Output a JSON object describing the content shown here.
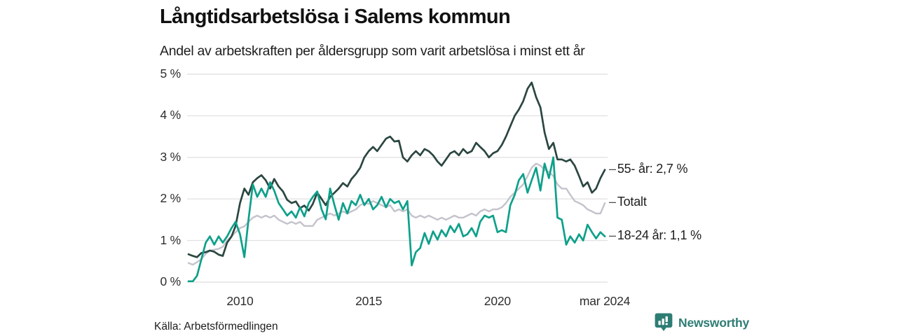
{
  "title": "Långtidsarbetslösa i Salems kommun",
  "subtitle": "Andel av arbetskraften per åldersgrupp som varit arbetslösa i minst ett år",
  "source": "Källa: Arbetsförmedlingen",
  "logo": {
    "text": "Newsworthy",
    "icon": "bar-chart-speech-bubble-icon",
    "color": "#2e7d74"
  },
  "colors": {
    "series_55": "#2b4641",
    "series_totalt": "#c4c3cc",
    "series_1824": "#0ea08a",
    "grid": "#e3e3e5",
    "axis_text": "#2e2e2e",
    "label_text": "#1d1d1d"
  },
  "endlabel_dash": "–",
  "chart_data": {
    "type": "line",
    "title": "Långtidsarbetslösa i Salems kommun",
    "subtitle": "Andel av arbetskraften per åldersgrupp som varit arbetslösa i minst ett år",
    "xlabel": "",
    "ylabel": "",
    "xlim": [
      2008,
      2024.25
    ],
    "ylim": [
      0,
      5
    ],
    "grid": "horizontal",
    "legend_position": "right-end-labels",
    "yticks": [
      {
        "value": 0,
        "label": "0 %"
      },
      {
        "value": 1,
        "label": "1 %"
      },
      {
        "value": 2,
        "label": "2 %"
      },
      {
        "value": 3,
        "label": "3 %"
      },
      {
        "value": 4,
        "label": "4 %"
      },
      {
        "value": 5,
        "label": "5 %"
      }
    ],
    "xticks": [
      {
        "year": 2010.0,
        "label": "2010"
      },
      {
        "year": 2015.0,
        "label": "2015"
      },
      {
        "year": 2020.0,
        "label": "2020"
      },
      {
        "year": 2024.17,
        "label": "mar 2024"
      }
    ],
    "x": [
      2008.0,
      2008.17,
      2008.33,
      2008.5,
      2008.67,
      2008.83,
      2009.0,
      2009.17,
      2009.33,
      2009.5,
      2009.67,
      2009.83,
      2010.0,
      2010.17,
      2010.33,
      2010.5,
      2010.67,
      2010.83,
      2011.0,
      2011.17,
      2011.33,
      2011.5,
      2011.67,
      2011.83,
      2012.0,
      2012.17,
      2012.33,
      2012.5,
      2012.67,
      2012.83,
      2013.0,
      2013.17,
      2013.33,
      2013.5,
      2013.67,
      2013.83,
      2014.0,
      2014.17,
      2014.33,
      2014.5,
      2014.67,
      2014.83,
      2015.0,
      2015.17,
      2015.33,
      2015.5,
      2015.67,
      2015.83,
      2016.0,
      2016.17,
      2016.33,
      2016.5,
      2016.67,
      2016.83,
      2017.0,
      2017.17,
      2017.33,
      2017.5,
      2017.67,
      2017.83,
      2018.0,
      2018.17,
      2018.33,
      2018.5,
      2018.67,
      2018.83,
      2019.0,
      2019.17,
      2019.33,
      2019.5,
      2019.67,
      2019.83,
      2020.0,
      2020.17,
      2020.33,
      2020.5,
      2020.67,
      2020.83,
      2021.0,
      2021.17,
      2021.33,
      2021.5,
      2021.67,
      2021.83,
      2022.0,
      2022.17,
      2022.33,
      2022.5,
      2022.67,
      2022.83,
      2023.0,
      2023.17,
      2023.33,
      2023.5,
      2023.67,
      2023.83,
      2024.0,
      2024.17
    ],
    "series": [
      {
        "name": "Totalt",
        "end_label": "Totalt",
        "color": "#c4c3cc",
        "end_value": null,
        "values": [
          0.46,
          0.42,
          0.48,
          0.55,
          0.68,
          0.75,
          0.78,
          0.8,
          0.85,
          1.0,
          1.1,
          1.2,
          1.3,
          1.34,
          1.45,
          1.55,
          1.6,
          1.55,
          1.6,
          1.55,
          1.6,
          1.5,
          1.45,
          1.4,
          1.45,
          1.4,
          1.45,
          1.35,
          1.35,
          1.35,
          1.5,
          1.55,
          1.6,
          1.65,
          1.6,
          1.65,
          1.7,
          1.65,
          1.7,
          1.75,
          1.85,
          1.9,
          1.88,
          1.95,
          1.9,
          1.85,
          1.8,
          1.85,
          1.7,
          1.75,
          1.7,
          1.75,
          1.6,
          1.55,
          1.6,
          1.55,
          1.6,
          1.55,
          1.5,
          1.55,
          1.5,
          1.55,
          1.6,
          1.55,
          1.55,
          1.6,
          1.65,
          1.6,
          1.7,
          1.75,
          1.7,
          1.75,
          1.75,
          1.8,
          1.9,
          2.05,
          2.15,
          2.25,
          2.35,
          2.55,
          2.75,
          2.85,
          2.8,
          2.7,
          2.65,
          2.55,
          2.35,
          2.25,
          2.25,
          2.1,
          1.95,
          1.9,
          1.85,
          1.75,
          1.7,
          1.65,
          1.65,
          1.9
        ]
      },
      {
        "name": "55- år",
        "end_label": "55- år: 2,7 %",
        "color": "#2b4641",
        "end_value": 2.7,
        "values": [
          0.67,
          0.63,
          0.6,
          0.7,
          0.72,
          0.76,
          0.73,
          0.66,
          0.63,
          0.95,
          1.1,
          1.35,
          1.9,
          2.25,
          2.1,
          2.4,
          2.5,
          2.57,
          2.45,
          2.25,
          2.48,
          2.3,
          2.18,
          1.98,
          1.9,
          1.94,
          1.78,
          1.84,
          1.72,
          1.88,
          2.15,
          2.0,
          1.85,
          2.05,
          2.15,
          2.25,
          2.38,
          2.3,
          2.48,
          2.6,
          2.75,
          3.0,
          3.15,
          3.25,
          3.15,
          3.3,
          3.45,
          3.5,
          3.38,
          3.4,
          3.0,
          2.9,
          3.05,
          3.15,
          3.05,
          3.2,
          3.15,
          3.05,
          2.9,
          2.8,
          2.95,
          3.1,
          3.15,
          3.05,
          3.2,
          3.1,
          3.15,
          3.35,
          3.25,
          3.15,
          3.0,
          3.1,
          3.15,
          3.3,
          3.5,
          3.75,
          4.0,
          4.15,
          4.35,
          4.65,
          4.8,
          4.45,
          4.2,
          3.6,
          3.2,
          3.35,
          2.95,
          2.95,
          2.9,
          2.95,
          2.8,
          2.55,
          2.3,
          2.4,
          2.15,
          2.25,
          2.5,
          2.7
        ]
      },
      {
        "name": "18-24 år",
        "end_label": "18-24 år: 1,1 %",
        "color": "#0ea08a",
        "end_value": 1.1,
        "values": [
          0.02,
          0.02,
          0.15,
          0.55,
          0.95,
          1.1,
          0.9,
          1.1,
          0.95,
          1.1,
          1.3,
          1.45,
          1.15,
          0.6,
          1.5,
          2.35,
          2.05,
          2.25,
          2.05,
          2.4,
          2.2,
          1.9,
          1.75,
          1.6,
          1.7,
          1.55,
          1.8,
          1.58,
          1.9,
          2.05,
          2.18,
          1.75,
          1.51,
          2.25,
          1.85,
          1.5,
          1.9,
          1.65,
          1.95,
          1.85,
          2.1,
          1.85,
          2.0,
          1.75,
          1.85,
          2.05,
          1.8,
          2.0,
          1.9,
          1.95,
          1.75,
          1.95,
          0.4,
          0.72,
          0.82,
          1.18,
          0.92,
          1.22,
          1.02,
          1.25,
          1.1,
          1.35,
          1.2,
          1.4,
          1.1,
          1.15,
          1.3,
          1.1,
          1.45,
          1.6,
          1.55,
          1.6,
          1.2,
          1.25,
          1.2,
          1.85,
          2.1,
          2.45,
          2.6,
          2.15,
          2.45,
          2.75,
          2.2,
          2.85,
          2.5,
          3.0,
          1.55,
          1.5,
          0.9,
          1.1,
          0.95,
          1.15,
          1.0,
          1.38,
          1.2,
          1.05,
          1.2,
          1.1
        ]
      }
    ]
  }
}
